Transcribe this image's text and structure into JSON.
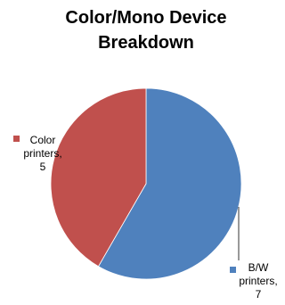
{
  "chart_data": {
    "type": "pie",
    "title_lines": [
      "Color/Mono Device",
      "Breakdown"
    ],
    "slices": [
      {
        "name": "B/W",
        "label_lines": [
          "B/W",
          "printers,",
          "7"
        ],
        "value": 7,
        "color": "#4F81BD"
      },
      {
        "name": "Color",
        "label_lines": [
          "Color",
          "printers,",
          "5"
        ],
        "value": 5,
        "color": "#C0504D"
      }
    ],
    "legend": "none",
    "start_angle_deg": 0,
    "direction": "clockwise"
  }
}
